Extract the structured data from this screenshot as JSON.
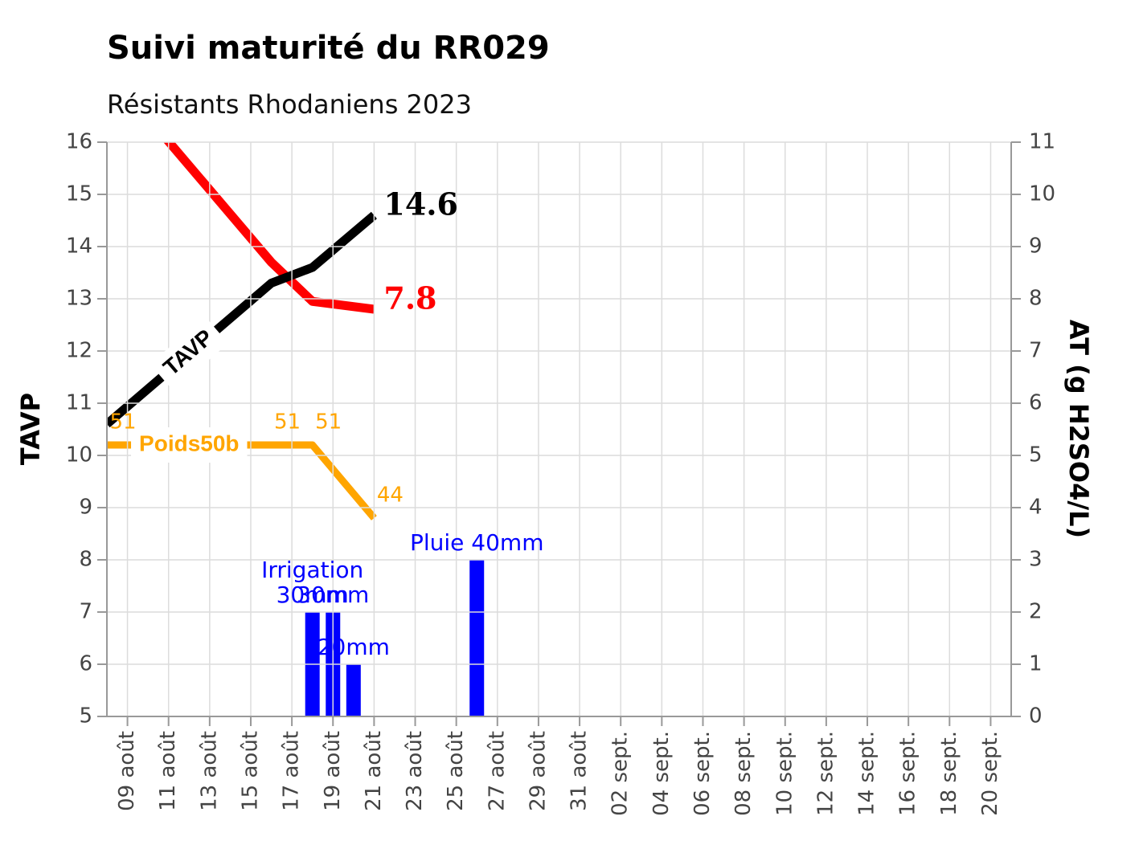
{
  "chart_data": {
    "type": "line",
    "title": "Suivi maturité du RR029",
    "subtitle": "Résistants Rhodaniens 2023",
    "ylabel": "TAVP",
    "y2label": "AT (g H2SO4/L)",
    "xlim": [
      "08-08",
      "09-21"
    ],
    "xticks": [
      {
        "value": "08-09",
        "label": "09 août"
      },
      {
        "value": "08-11",
        "label": "11 août"
      },
      {
        "value": "08-13",
        "label": "13 août"
      },
      {
        "value": "08-15",
        "label": "15 août"
      },
      {
        "value": "08-17",
        "label": "17 août"
      },
      {
        "value": "08-19",
        "label": "19 août"
      },
      {
        "value": "08-21",
        "label": "21 août"
      },
      {
        "value": "08-23",
        "label": "23 août"
      },
      {
        "value": "08-25",
        "label": "25 août"
      },
      {
        "value": "08-27",
        "label": "27 août"
      },
      {
        "value": "08-29",
        "label": "29 août"
      },
      {
        "value": "08-31",
        "label": "31 août"
      },
      {
        "value": "09-02",
        "label": "02 sept."
      },
      {
        "value": "09-04",
        "label": "04 sept."
      },
      {
        "value": "09-06",
        "label": "06 sept."
      },
      {
        "value": "09-08",
        "label": "08 sept."
      },
      {
        "value": "09-10",
        "label": "10 sept."
      },
      {
        "value": "09-12",
        "label": "12 sept."
      },
      {
        "value": "09-14",
        "label": "14 sept."
      },
      {
        "value": "09-16",
        "label": "16 sept."
      },
      {
        "value": "09-18",
        "label": "18 sept."
      },
      {
        "value": "09-20",
        "label": "20 sept."
      }
    ],
    "ylim": [
      5,
      16
    ],
    "yticks": [
      5,
      6,
      7,
      8,
      9,
      10,
      11,
      12,
      13,
      14,
      15,
      16
    ],
    "y2lim": [
      0,
      11
    ],
    "y2ticks": [
      0,
      1,
      2,
      3,
      4,
      5,
      6,
      7,
      8,
      9,
      10,
      11
    ],
    "grid": true,
    "series": [
      {
        "type": "bar",
        "color": "#0000ff",
        "x": [
          "08-18",
          "08-19",
          "08-20",
          "08-26"
        ],
        "values": [
          7,
          7,
          6,
          8
        ],
        "value_labels": [
          "Irrigation\n30mm",
          "30mm",
          "20mm",
          "Pluie 40mm"
        ]
      },
      {
        "name": "Poids50b",
        "color": "#ffa500",
        "x": [
          "08-08",
          "08-16",
          "08-18",
          "08-21"
        ],
        "values": [
          10.2,
          10.2,
          10.2,
          8.8
        ],
        "value_labels": [
          "51",
          "51",
          "51",
          "44"
        ]
      },
      {
        "color": "#ff0000",
        "axis": "y2",
        "x": [
          "08-08",
          "08-16",
          "08-18",
          "08-21"
        ],
        "values": [
          12.4,
          8.7,
          7.95,
          7.8
        ],
        "label_last": true
      },
      {
        "name": "TAVP",
        "color": "#000000",
        "x": [
          "08-08",
          "08-16",
          "08-18",
          "08-21"
        ],
        "values": [
          10.6,
          13.3,
          13.6,
          14.6
        ],
        "label_last": true
      }
    ]
  }
}
